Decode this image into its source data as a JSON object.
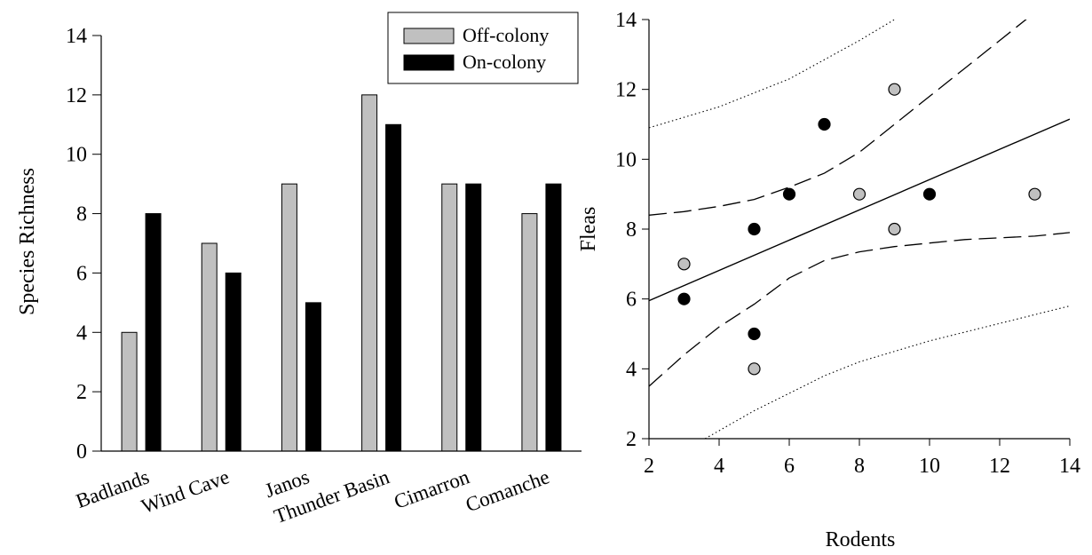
{
  "chart_data": [
    {
      "type": "bar",
      "ylabel": "Species Richness",
      "ylim": [
        0,
        14
      ],
      "yticks": [
        0,
        2,
        4,
        6,
        8,
        10,
        12,
        14
      ],
      "categories": [
        "Badlands",
        "Wind Cave",
        "Janos",
        "Thunder Basin",
        "Cimarron",
        "Comanche"
      ],
      "series": [
        {
          "name": "Off-colony",
          "color": "#c0c0c0",
          "values": [
            4,
            7,
            9,
            12,
            9,
            8
          ]
        },
        {
          "name": "On-colony",
          "color": "#000000",
          "values": [
            8,
            6,
            5,
            11,
            9,
            9
          ]
        }
      ],
      "legend": "top-right",
      "grid": false
    },
    {
      "type": "scatter",
      "xlabel": "Rodents",
      "ylabel": "Fleas",
      "xlim": [
        2,
        14
      ],
      "ylim": [
        2,
        14
      ],
      "xticks": [
        2,
        4,
        6,
        8,
        10,
        12,
        14
      ],
      "yticks": [
        2,
        4,
        6,
        8,
        10,
        12,
        14
      ],
      "grid": false,
      "series": [
        {
          "color": "#c0c0c0",
          "points": [
            [
              3,
              7
            ],
            [
              5,
              4
            ],
            [
              8,
              9
            ],
            [
              9,
              12
            ],
            [
              9,
              8
            ],
            [
              13,
              9
            ]
          ]
        },
        {
          "color": "#000000",
          "points": [
            [
              3,
              6
            ],
            [
              5,
              8
            ],
            [
              5,
              5
            ],
            [
              6,
              9
            ],
            [
              7,
              11
            ],
            [
              10,
              9
            ]
          ]
        }
      ],
      "regression_line": {
        "from": [
          2,
          5.95
        ],
        "to": [
          14,
          11.15
        ]
      },
      "confidence_band_upper": [
        [
          2,
          8.4
        ],
        [
          3,
          8.5
        ],
        [
          4,
          8.65
        ],
        [
          5,
          8.85
        ],
        [
          6,
          9.2
        ],
        [
          7,
          9.6
        ],
        [
          8,
          10.2
        ],
        [
          9,
          11.0
        ],
        [
          10,
          11.8
        ],
        [
          11,
          12.6
        ],
        [
          12,
          13.4
        ],
        [
          13,
          14.2
        ]
      ],
      "confidence_band_lower": [
        [
          2,
          3.5
        ],
        [
          3,
          4.4
        ],
        [
          4,
          5.2
        ],
        [
          5,
          5.85
        ],
        [
          6,
          6.6
        ],
        [
          7,
          7.1
        ],
        [
          8,
          7.35
        ],
        [
          9,
          7.5
        ],
        [
          10,
          7.6
        ],
        [
          11,
          7.7
        ],
        [
          12,
          7.75
        ],
        [
          13,
          7.8
        ],
        [
          14,
          7.9
        ]
      ],
      "prediction_band_upper": [
        [
          2,
          10.9
        ],
        [
          4,
          11.5
        ],
        [
          6,
          12.3
        ],
        [
          8,
          13.4
        ],
        [
          9,
          14.0
        ]
      ],
      "prediction_band_lower": [
        [
          3.6,
          2.0
        ],
        [
          5,
          2.8
        ],
        [
          6,
          3.3
        ],
        [
          7,
          3.8
        ],
        [
          8,
          4.2
        ],
        [
          10,
          4.8
        ],
        [
          12,
          5.3
        ],
        [
          14,
          5.8
        ]
      ]
    }
  ]
}
